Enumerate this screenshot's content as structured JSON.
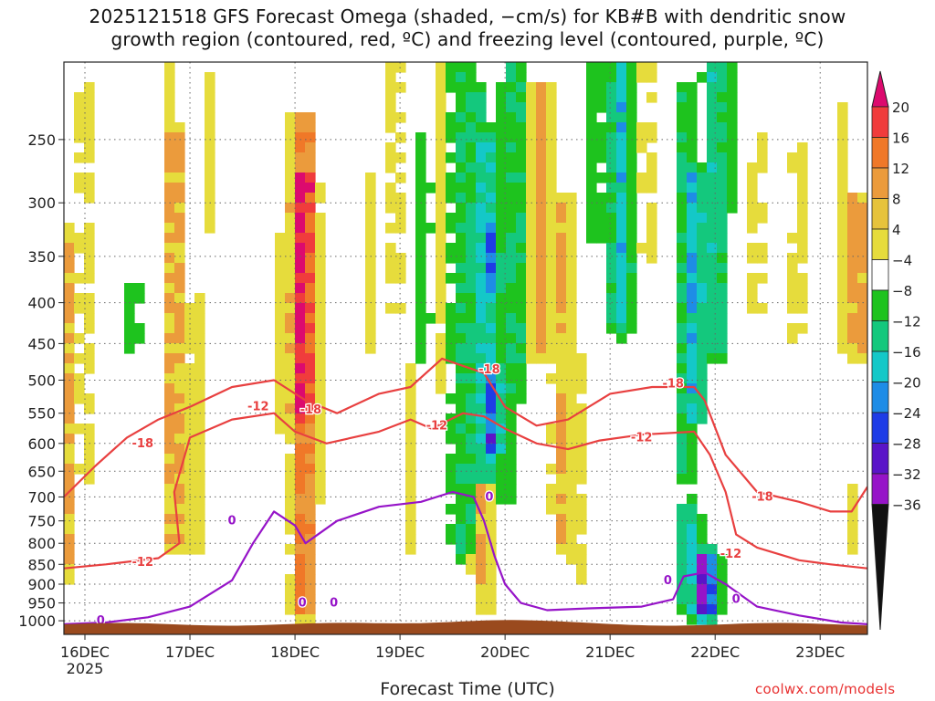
{
  "title_line1": "2025121518 GFS Forecast Omega (shaded, −cm/s) for KB#B with dendritic snow",
  "title_line2": "growth region (contoured, red, ºC) and freezing level (contoured, purple, ºC)",
  "credit": "coolwx.com/models",
  "chart_data": {
    "type": "heatmap",
    "title": "2025121518 GFS Forecast Omega (shaded, −cm/s) for KB#B with dendritic snow growth region (contoured, red, ºC) and freezing level (contoured, purple, ºC)",
    "xlabel": "Forecast Time (UTC)",
    "ylabel": "",
    "x_range_days": [
      0,
      7.65
    ],
    "x_ticks": [
      {
        "day": 0.2,
        "label": "16DEC",
        "sublabel": "2025"
      },
      {
        "day": 1.2,
        "label": "17DEC"
      },
      {
        "day": 2.2,
        "label": "18DEC"
      },
      {
        "day": 3.2,
        "label": "19DEC"
      },
      {
        "day": 4.2,
        "label": "20DEC"
      },
      {
        "day": 5.2,
        "label": "21DEC"
      },
      {
        "day": 6.2,
        "label": "22DEC"
      },
      {
        "day": 7.2,
        "label": "23DEC"
      }
    ],
    "y_range_hPa": [
      1040,
      200
    ],
    "y_ticks": [
      250,
      300,
      350,
      400,
      450,
      500,
      550,
      600,
      650,
      700,
      750,
      800,
      850,
      900,
      950,
      1000
    ],
    "colorbar": {
      "levels": [
        20,
        16,
        12,
        8,
        4,
        -4,
        -8,
        -12,
        -16,
        -20,
        -24,
        -28,
        -32,
        -36
      ],
      "colors": [
        "#dc0a6e",
        "#f03c3c",
        "#f07828",
        "#eb9b3c",
        "#e6c33c",
        "#e6dc3c",
        "#ffffff",
        "#1ec31e",
        "#14c87d",
        "#14c8c8",
        "#1e8ce6",
        "#1e3ce6",
        "#5a14c8",
        "#9614c8",
        "#aaaaaa",
        "#111111"
      ]
    },
    "omega_features": [
      {
        "day": 0.02,
        "p_top": 330,
        "p_bot": 860,
        "value": 9
      },
      {
        "day": 0.2,
        "p_top": 220,
        "p_bot": 650,
        "value": 5
      },
      {
        "day": 0.65,
        "p_top": 380,
        "p_bot": 450,
        "value": -6
      },
      {
        "day": 1.0,
        "p_top": 200,
        "p_bot": 650,
        "value": 5
      },
      {
        "day": 1.05,
        "p_top": 250,
        "p_bot": 800,
        "value": 10
      },
      {
        "day": 1.25,
        "p_top": 400,
        "p_bot": 800,
        "value": 6
      },
      {
        "day": 1.4,
        "p_top": 200,
        "p_bot": 320,
        "value": 5
      },
      {
        "day": 2.1,
        "p_top": 330,
        "p_bot": 570,
        "value": 6
      },
      {
        "day": 2.28,
        "p_top": 240,
        "p_bot": 950,
        "value": 14
      },
      {
        "day": 2.28,
        "p_top": 280,
        "p_bot": 550,
        "value": 22
      },
      {
        "day": 2.38,
        "p_top": 330,
        "p_bot": 700,
        "value": 7
      },
      {
        "day": 2.9,
        "p_top": 280,
        "p_bot": 460,
        "value": 5
      },
      {
        "day": 3.15,
        "p_top": 200,
        "p_bot": 400,
        "value": 5
      },
      {
        "day": 3.3,
        "p_top": 480,
        "p_bot": 800,
        "value": 5
      },
      {
        "day": 3.4,
        "p_top": 250,
        "p_bot": 460,
        "value": -6
      },
      {
        "day": 3.6,
        "p_top": 200,
        "p_bot": 500,
        "value": 5
      },
      {
        "day": 3.78,
        "p_top": 200,
        "p_bot": 820,
        "value": -8
      },
      {
        "day": 3.92,
        "p_top": 220,
        "p_bot": 780,
        "value": -10
      },
      {
        "day": 4.02,
        "p_top": 250,
        "p_bot": 650,
        "value": -14
      },
      {
        "day": 4.05,
        "p_top": 330,
        "p_bot": 380,
        "value": -20
      },
      {
        "day": 4.08,
        "p_top": 500,
        "p_bot": 600,
        "value": -22
      },
      {
        "day": 3.98,
        "p_top": 600,
        "p_bot": 950,
        "value": 9
      },
      {
        "day": 4.2,
        "p_top": 220,
        "p_bot": 700,
        "value": -7
      },
      {
        "day": 4.3,
        "p_top": 200,
        "p_bot": 520,
        "value": -9
      },
      {
        "day": 4.55,
        "p_top": 220,
        "p_bot": 460,
        "value": 10
      },
      {
        "day": 4.75,
        "p_top": 300,
        "p_bot": 800,
        "value": 9
      },
      {
        "day": 4.9,
        "p_top": 480,
        "p_bot": 900,
        "value": 5
      },
      {
        "day": 5.05,
        "p_top": 200,
        "p_bot": 330,
        "value": -6
      },
      {
        "day": 5.3,
        "p_top": 200,
        "p_bot": 420,
        "value": -14
      },
      {
        "day": 5.55,
        "p_top": 200,
        "p_bot": 350,
        "value": 5
      },
      {
        "day": 5.9,
        "p_top": 220,
        "p_bot": 650,
        "value": -8
      },
      {
        "day": 6.0,
        "p_top": 280,
        "p_bot": 550,
        "value": -15
      },
      {
        "day": 5.95,
        "p_top": 740,
        "p_bot": 930,
        "value": -14
      },
      {
        "day": 6.1,
        "p_top": 850,
        "p_bot": 960,
        "value": -30
      },
      {
        "day": 6.2,
        "p_top": 200,
        "p_bot": 460,
        "value": -11
      },
      {
        "day": 6.35,
        "p_top": 200,
        "p_bot": 300,
        "value": -6
      },
      {
        "day": 6.6,
        "p_top": 250,
        "p_bot": 400,
        "value": 5
      },
      {
        "day": 7.0,
        "p_top": 260,
        "p_bot": 440,
        "value": 5
      },
      {
        "day": 7.4,
        "p_top": 220,
        "p_bot": 460,
        "value": 5
      },
      {
        "day": 7.55,
        "p_top": 300,
        "p_bot": 460,
        "value": 11
      },
      {
        "day": 7.5,
        "p_top": 680,
        "p_bot": 800,
        "value": 5
      }
    ],
    "dgz_warm_edge_minus12": [
      [
        0,
        860
      ],
      [
        0.4,
        850
      ],
      [
        0.9,
        835
      ],
      [
        1.1,
        800
      ],
      [
        1.05,
        690
      ],
      [
        1.2,
        590
      ],
      [
        1.6,
        560
      ],
      [
        2.0,
        550
      ],
      [
        2.2,
        580
      ],
      [
        2.5,
        600
      ],
      [
        3.0,
        580
      ],
      [
        3.3,
        560
      ],
      [
        3.5,
        575
      ],
      [
        3.8,
        550
      ],
      [
        4.0,
        555
      ],
      [
        4.2,
        575
      ],
      [
        4.5,
        600
      ],
      [
        4.8,
        610
      ],
      [
        5.1,
        595
      ],
      [
        5.5,
        585
      ],
      [
        6.0,
        580
      ],
      [
        6.15,
        620
      ],
      [
        6.3,
        690
      ],
      [
        6.4,
        780
      ],
      [
        6.6,
        810
      ],
      [
        7.0,
        840
      ],
      [
        7.3,
        850
      ],
      [
        7.65,
        860
      ]
    ],
    "dgz_cold_edge_minus18": [
      [
        0,
        700
      ],
      [
        0.3,
        640
      ],
      [
        0.6,
        590
      ],
      [
        0.9,
        560
      ],
      [
        1.2,
        540
      ],
      [
        1.6,
        510
      ],
      [
        2.0,
        500
      ],
      [
        2.3,
        530
      ],
      [
        2.6,
        550
      ],
      [
        3.0,
        520
      ],
      [
        3.3,
        510
      ],
      [
        3.6,
        470
      ],
      [
        3.8,
        480
      ],
      [
        4.0,
        490
      ],
      [
        4.2,
        540
      ],
      [
        4.5,
        570
      ],
      [
        4.8,
        560
      ],
      [
        5.2,
        520
      ],
      [
        5.6,
        510
      ],
      [
        6.0,
        510
      ],
      [
        6.1,
        530
      ],
      [
        6.3,
        620
      ],
      [
        6.6,
        690
      ],
      [
        7.0,
        710
      ],
      [
        7.3,
        730
      ],
      [
        7.5,
        730
      ],
      [
        7.65,
        680
      ]
    ],
    "freezing_level_0C": [
      [
        0,
        1010
      ],
      [
        0.4,
        1005
      ],
      [
        0.8,
        990
      ],
      [
        1.2,
        960
      ],
      [
        1.6,
        890
      ],
      [
        1.8,
        800
      ],
      [
        2.0,
        730
      ],
      [
        2.2,
        760
      ],
      [
        2.3,
        800
      ],
      [
        2.6,
        750
      ],
      [
        3.0,
        720
      ],
      [
        3.4,
        710
      ],
      [
        3.7,
        690
      ],
      [
        3.9,
        700
      ],
      [
        4.0,
        750
      ],
      [
        4.1,
        830
      ],
      [
        4.2,
        900
      ],
      [
        4.35,
        950
      ],
      [
        4.6,
        970
      ],
      [
        5.0,
        965
      ],
      [
        5.5,
        960
      ],
      [
        5.8,
        940
      ],
      [
        5.9,
        880
      ],
      [
        6.1,
        870
      ],
      [
        6.3,
        900
      ],
      [
        6.6,
        960
      ],
      [
        7.0,
        985
      ],
      [
        7.4,
        1005
      ],
      [
        7.65,
        1010
      ]
    ],
    "contour_labels": [
      {
        "day": 0.75,
        "p": 600,
        "text": "-18",
        "color": "#e84040"
      },
      {
        "day": 2.35,
        "p": 545,
        "text": "-18",
        "color": "#e84040"
      },
      {
        "day": 1.85,
        "p": 540,
        "text": "-12",
        "color": "#e84040"
      },
      {
        "day": 3.55,
        "p": 570,
        "text": "-12",
        "color": "#e84040"
      },
      {
        "day": 0.75,
        "p": 845,
        "text": "-12",
        "color": "#e84040"
      },
      {
        "day": 4.05,
        "p": 485,
        "text": "-18",
        "color": "#e84040"
      },
      {
        "day": 5.8,
        "p": 505,
        "text": "-18",
        "color": "#e84040"
      },
      {
        "day": 5.5,
        "p": 590,
        "text": "-12",
        "color": "#e84040"
      },
      {
        "day": 6.65,
        "p": 700,
        "text": "-18",
        "color": "#e84040"
      },
      {
        "day": 6.35,
        "p": 825,
        "text": "-12",
        "color": "#e84040"
      },
      {
        "day": 1.6,
        "p": 750,
        "text": "0",
        "color": "#9614c8"
      },
      {
        "day": 0.35,
        "p": 1000,
        "text": "0",
        "color": "#9614c8"
      },
      {
        "day": 2.27,
        "p": 950,
        "text": "0",
        "color": "#9614c8"
      },
      {
        "day": 2.57,
        "p": 950,
        "text": "0",
        "color": "#9614c8"
      },
      {
        "day": 4.05,
        "p": 700,
        "text": "0",
        "color": "#9614c8"
      },
      {
        "day": 5.75,
        "p": 890,
        "text": "0",
        "color": "#9614c8"
      },
      {
        "day": 6.4,
        "p": 940,
        "text": "0",
        "color": "#9614c8"
      }
    ]
  }
}
